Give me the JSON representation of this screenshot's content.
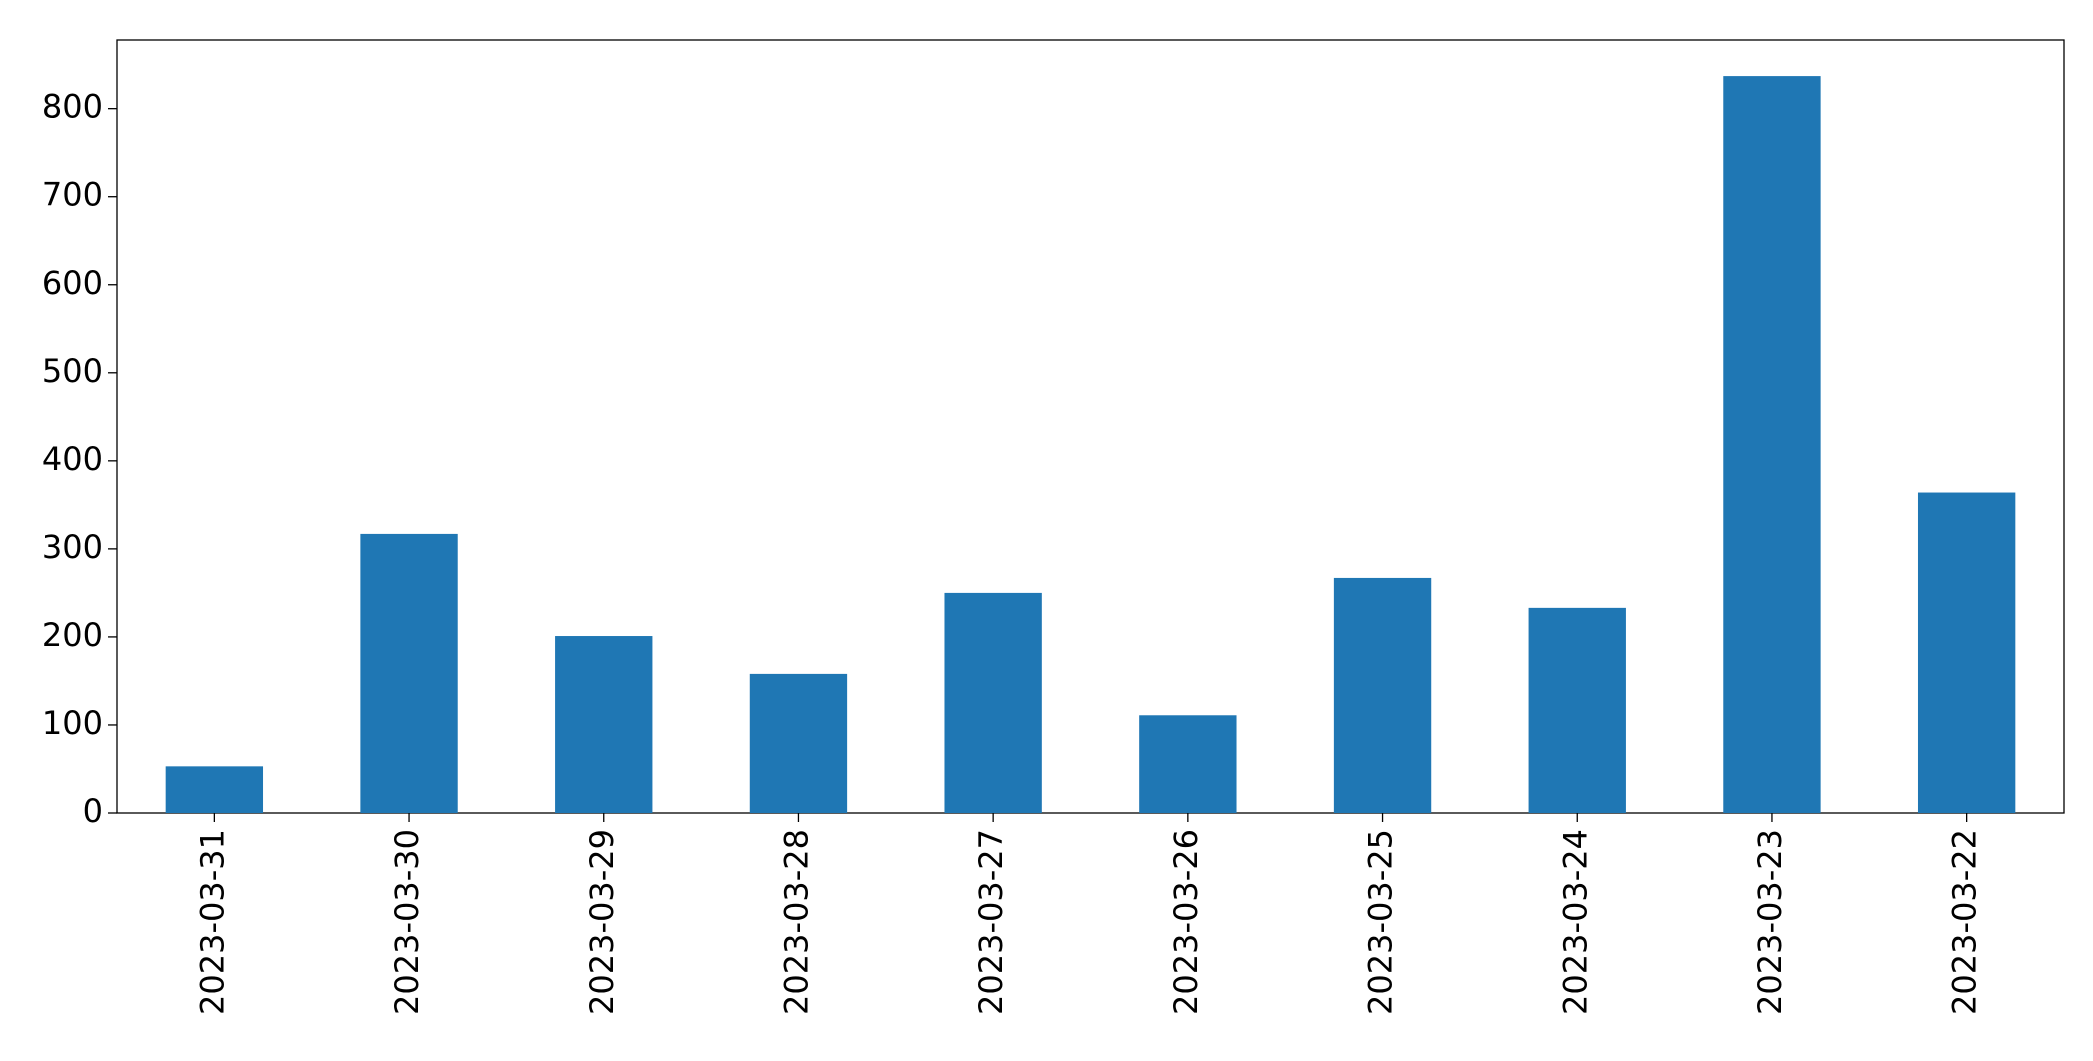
{
  "chart_data": {
    "type": "bar",
    "categories": [
      "2023-03-31",
      "2023-03-30",
      "2023-03-29",
      "2023-03-28",
      "2023-03-27",
      "2023-03-26",
      "2023-03-25",
      "2023-03-24",
      "2023-03-23",
      "2023-03-22"
    ],
    "values": [
      53,
      317,
      201,
      158,
      250,
      111,
      267,
      233,
      837,
      364
    ],
    "color": "#1f77b4",
    "ylim": [
      0,
      878
    ],
    "yticks": [
      0,
      100,
      200,
      300,
      400,
      500,
      600,
      700,
      800
    ],
    "grid": false
  }
}
